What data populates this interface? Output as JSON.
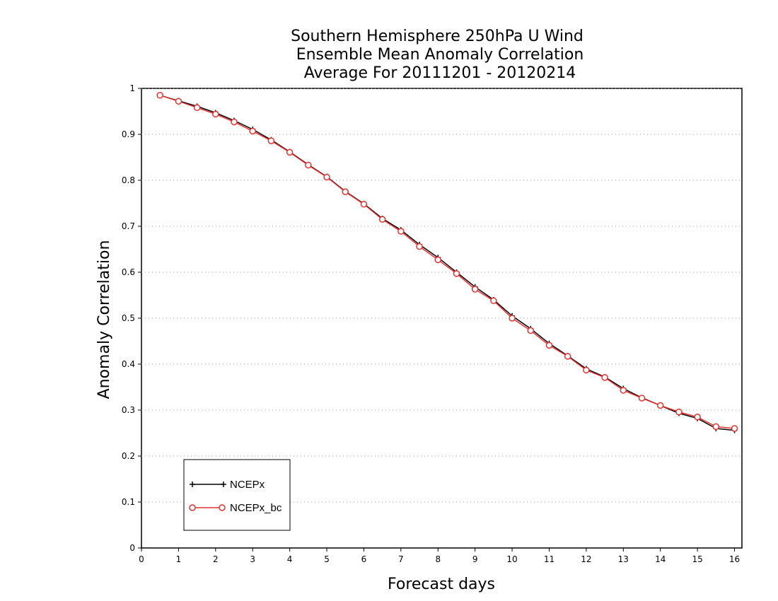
{
  "chart_data": {
    "type": "line",
    "title_lines": [
      "Southern Hemisphere 250hPa U Wind",
      "Ensemble Mean Anomaly Correlation",
      "Average For 20111201 - 20120214"
    ],
    "xlabel": "Forecast days",
    "ylabel": "Anomaly Correlation",
    "xlim": [
      0,
      16.2
    ],
    "ylim": [
      0,
      1
    ],
    "xticks": [
      0,
      1,
      2,
      3,
      4,
      5,
      6,
      7,
      8,
      9,
      10,
      11,
      12,
      13,
      14,
      15,
      16
    ],
    "yticks": [
      0,
      0.1,
      0.2,
      0.3,
      0.4,
      0.5,
      0.6,
      0.7,
      0.8,
      0.9,
      1
    ],
    "ytick_labels": [
      "0",
      "0.1",
      "0.2",
      "0.3",
      "0.4",
      "0.5",
      "0.6",
      "0.7",
      "0.8",
      "0.9",
      "1"
    ],
    "grid": "horizontal dotted",
    "legend_position": "bottom-left",
    "x": [
      0.5,
      1,
      1.5,
      2,
      2.5,
      3,
      3.5,
      4,
      4.5,
      5,
      5.5,
      6,
      6.5,
      7,
      7.5,
      8,
      8.5,
      9,
      9.5,
      10,
      10.5,
      11,
      11.5,
      12,
      12.5,
      13,
      13.5,
      14,
      14.5,
      15,
      15.5,
      16
    ],
    "series": [
      {
        "name": "NCEPx",
        "color": "#000000",
        "marker": "plus",
        "values": [
          0.985,
          0.973,
          0.961,
          0.947,
          0.93,
          0.911,
          0.888,
          0.862,
          0.834,
          0.808,
          0.776,
          0.749,
          0.717,
          0.692,
          0.66,
          0.632,
          0.6,
          0.568,
          0.54,
          0.505,
          0.477,
          0.445,
          0.418,
          0.39,
          0.372,
          0.347,
          0.327,
          0.31,
          0.293,
          0.282,
          0.26,
          0.256
        ]
      },
      {
        "name": "NCEPx_bc",
        "color": "#e8312f",
        "marker": "circle",
        "values": [
          0.985,
          0.972,
          0.958,
          0.944,
          0.927,
          0.907,
          0.886,
          0.861,
          0.833,
          0.807,
          0.775,
          0.748,
          0.715,
          0.689,
          0.656,
          0.627,
          0.597,
          0.563,
          0.538,
          0.5,
          0.473,
          0.441,
          0.417,
          0.387,
          0.371,
          0.343,
          0.326,
          0.31,
          0.296,
          0.285,
          0.264,
          0.26
        ]
      }
    ]
  }
}
